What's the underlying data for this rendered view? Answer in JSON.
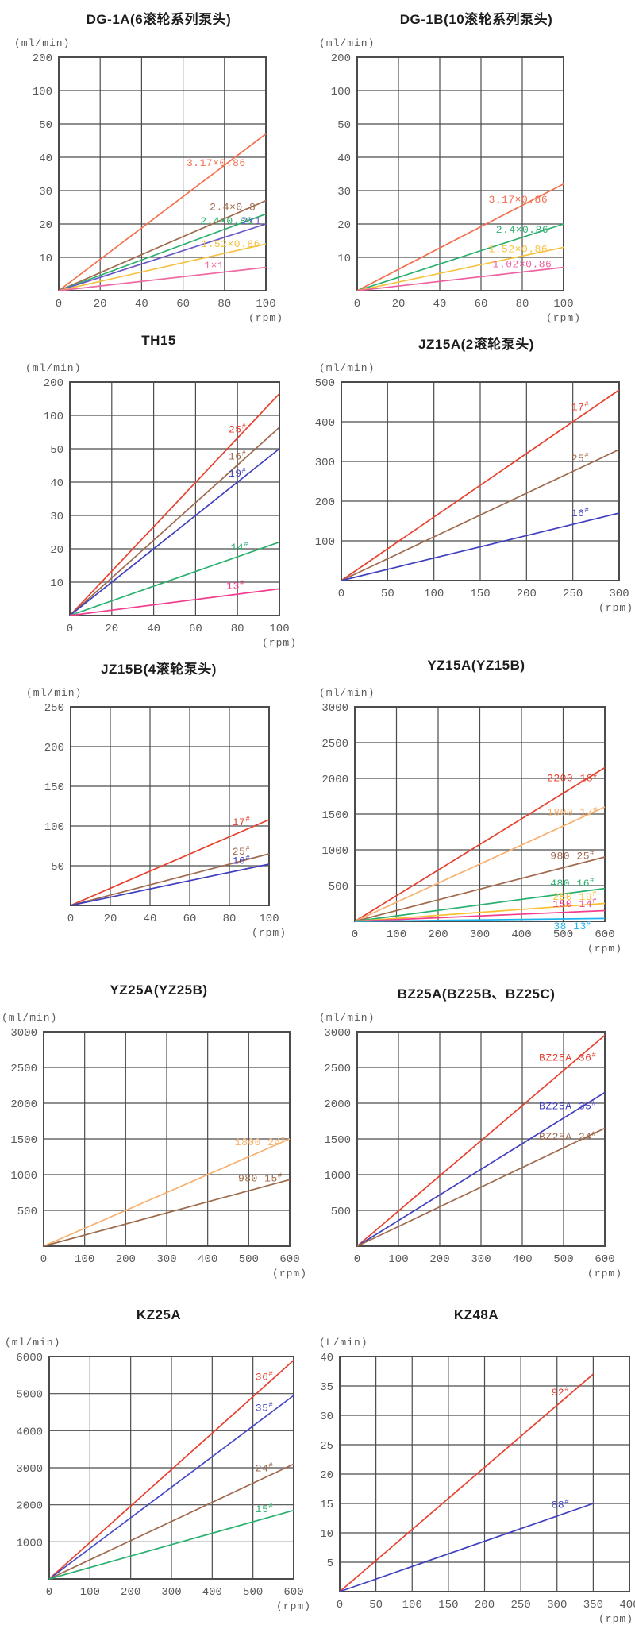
{
  "chart_data": [
    {
      "type": "line",
      "title": "DG-1A(6滚轮系列泵头)",
      "y_unit": "(ml/min)",
      "x_unit": "(rpm)",
      "y_ticks": [
        10,
        20,
        30,
        40,
        50,
        100,
        200
      ],
      "x_ticks": [
        0,
        20,
        40,
        60,
        80,
        100
      ],
      "ylim": [
        0,
        200
      ],
      "xlim": [
        0,
        100
      ],
      "grid": true,
      "series": [
        {
          "label": "3.17×0.86",
          "color": "#f4704e",
          "x": [
            0,
            100
          ],
          "y": [
            0,
            47
          ]
        },
        {
          "label": "2.4×0.8",
          "color": "#a06a4e",
          "x": [
            0,
            100
          ],
          "y": [
            0,
            27
          ]
        },
        {
          "label": "2.4×0.86",
          "color": "#2ab06e",
          "x": [
            0,
            100
          ],
          "y": [
            0,
            23
          ]
        },
        {
          "label": "2×1",
          "color": "#6a58c8",
          "x": [
            0,
            100
          ],
          "y": [
            0,
            20
          ]
        },
        {
          "label": "1.52×0.86",
          "color": "#f5c242",
          "x": [
            0,
            100
          ],
          "y": [
            0,
            14
          ]
        },
        {
          "label": "1×1",
          "color": "#ee6aa4",
          "x": [
            0,
            100
          ],
          "y": [
            0,
            7
          ]
        }
      ]
    },
    {
      "type": "line",
      "title": "DG-1B(10滚轮系列泵头)",
      "y_unit": "(ml/min)",
      "x_unit": "(rpm)",
      "y_ticks": [
        10,
        20,
        30,
        40,
        50,
        100,
        200
      ],
      "x_ticks": [
        0,
        20,
        40,
        60,
        80,
        100
      ],
      "ylim": [
        0,
        200
      ],
      "xlim": [
        0,
        100
      ],
      "grid": true,
      "series": [
        {
          "label": "3.17×0.86",
          "color": "#f4704e",
          "x": [
            0,
            100
          ],
          "y": [
            0,
            32
          ]
        },
        {
          "label": "2.4×0.86",
          "color": "#2ab06e",
          "x": [
            0,
            100
          ],
          "y": [
            0,
            20
          ]
        },
        {
          "label": "1.52×0.86",
          "color": "#f5c242",
          "x": [
            0,
            100
          ],
          "y": [
            0,
            13
          ]
        },
        {
          "label": "1.02×0.86",
          "color": "#ee5fa0",
          "x": [
            0,
            100
          ],
          "y": [
            0,
            7
          ]
        }
      ]
    },
    {
      "type": "line",
      "title": "TH15",
      "y_unit": "(ml/min)",
      "x_unit": "(rpm)",
      "y_ticks": [
        10,
        20,
        30,
        40,
        50,
        100,
        200
      ],
      "x_ticks": [
        0,
        20,
        40,
        60,
        80,
        100
      ],
      "ylim": [
        0,
        200
      ],
      "xlim": [
        0,
        100
      ],
      "grid": true,
      "series": [
        {
          "label": "25#",
          "color": "#e8402e",
          "x": [
            0,
            100
          ],
          "y": [
            0,
            165
          ]
        },
        {
          "label": "16#",
          "color": "#a06a4e",
          "x": [
            0,
            100
          ],
          "y": [
            0,
            82
          ]
        },
        {
          "label": "19#",
          "color": "#3f3fc0",
          "x": [
            0,
            100
          ],
          "y": [
            0,
            50
          ]
        },
        {
          "label": "14#",
          "color": "#2ab06e",
          "x": [
            0,
            100
          ],
          "y": [
            0,
            22
          ]
        },
        {
          "label": "13#",
          "color": "#f23e8e",
          "x": [
            0,
            100
          ],
          "y": [
            0,
            8
          ]
        }
      ]
    },
    {
      "type": "line",
      "title": "JZ15A(2滚轮泵头)",
      "y_unit": "(ml/min)",
      "x_unit": "(rpm)",
      "y_ticks": [
        100,
        200,
        300,
        400,
        500
      ],
      "x_ticks": [
        0,
        50,
        100,
        150,
        200,
        250,
        300
      ],
      "ylim": [
        0,
        500
      ],
      "xlim": [
        0,
        300
      ],
      "grid": true,
      "series": [
        {
          "label": "17#",
          "color": "#e8402e",
          "x": [
            0,
            300
          ],
          "y": [
            0,
            480
          ]
        },
        {
          "label": "25#",
          "color": "#a06a4e",
          "x": [
            0,
            300
          ],
          "y": [
            0,
            330
          ]
        },
        {
          "label": "16#",
          "color": "#3f3fc0",
          "x": [
            0,
            300
          ],
          "y": [
            0,
            170
          ]
        }
      ]
    },
    {
      "type": "line",
      "title": "JZ15B(4滚轮泵头)",
      "y_unit": "(ml/min)",
      "x_unit": "(rpm)",
      "y_ticks": [
        50,
        100,
        150,
        200,
        250
      ],
      "x_ticks": [
        0,
        20,
        40,
        60,
        80,
        100
      ],
      "ylim": [
        0,
        250
      ],
      "xlim": [
        0,
        100
      ],
      "grid": true,
      "series": [
        {
          "label": "17#",
          "color": "#e8402e",
          "x": [
            0,
            100
          ],
          "y": [
            0,
            108
          ]
        },
        {
          "label": "25#",
          "color": "#a06a4e",
          "x": [
            0,
            100
          ],
          "y": [
            0,
            65
          ]
        },
        {
          "label": "16#",
          "color": "#3f3fc0",
          "x": [
            0,
            100
          ],
          "y": [
            0,
            52
          ]
        }
      ]
    },
    {
      "type": "line",
      "title": "YZ15A(YZ15B)",
      "y_unit": "(ml/min)",
      "x_unit": "(rpm)",
      "y_ticks": [
        500,
        1000,
        1500,
        2000,
        2500,
        3000
      ],
      "x_ticks": [
        0,
        100,
        200,
        300,
        400,
        500,
        600
      ],
      "ylim": [
        0,
        3000
      ],
      "xlim": [
        0,
        600
      ],
      "grid": true,
      "series": [
        {
          "label": "2200 18#",
          "color": "#e8402e",
          "x": [
            0,
            600
          ],
          "y": [
            0,
            2150
          ]
        },
        {
          "label": "1800 17#",
          "color": "#f8b06e",
          "x": [
            0,
            600
          ],
          "y": [
            0,
            1600
          ]
        },
        {
          "label": "980 25#",
          "color": "#a06a4e",
          "x": [
            0,
            600
          ],
          "y": [
            0,
            900
          ]
        },
        {
          "label": "480 16#",
          "color": "#2ab06e",
          "x": [
            0,
            600
          ],
          "y": [
            0,
            460
          ]
        },
        {
          "label": "250 19#",
          "color": "#f8c030",
          "x": [
            0,
            600
          ],
          "y": [
            0,
            250
          ]
        },
        {
          "label": "150 14#",
          "color": "#f23e8e",
          "x": [
            0,
            600
          ],
          "y": [
            0,
            150
          ]
        },
        {
          "label": "38 13#",
          "color": "#20b4ee",
          "x": [
            0,
            600
          ],
          "y": [
            0,
            40
          ]
        }
      ]
    },
    {
      "type": "line",
      "title": "YZ25A(YZ25B)",
      "y_unit": "(ml/min)",
      "x_unit": "(rpm)",
      "y_ticks": [
        500,
        1000,
        1500,
        2000,
        2500,
        3000
      ],
      "x_ticks": [
        0,
        100,
        200,
        300,
        400,
        500,
        600
      ],
      "ylim": [
        0,
        3000
      ],
      "xlim": [
        0,
        600
      ],
      "grid": true,
      "series": [
        {
          "label": "1800 24#",
          "color": "#f8b06e",
          "x": [
            0,
            600
          ],
          "y": [
            0,
            1500
          ]
        },
        {
          "label": "980 15#",
          "color": "#9c6a4a",
          "x": [
            0,
            600
          ],
          "y": [
            0,
            930
          ]
        }
      ]
    },
    {
      "type": "line",
      "title": "BZ25A(BZ25B、BZ25C)",
      "y_unit": "(ml/min)",
      "x_unit": "(rpm)",
      "y_ticks": [
        500,
        1000,
        1500,
        2000,
        2500,
        3000
      ],
      "x_ticks": [
        0,
        100,
        200,
        300,
        400,
        500,
        600
      ],
      "ylim": [
        0,
        3000
      ],
      "xlim": [
        0,
        600
      ],
      "grid": true,
      "series": [
        {
          "label": "BZ25A 36#",
          "color": "#e8402e",
          "x": [
            0,
            600
          ],
          "y": [
            0,
            2950
          ]
        },
        {
          "label": "BZ25A 35#",
          "color": "#4040c0",
          "x": [
            0,
            600
          ],
          "y": [
            0,
            2150
          ]
        },
        {
          "label": "BZ25A 24#",
          "color": "#a06a4e",
          "x": [
            0,
            600
          ],
          "y": [
            0,
            1650
          ]
        }
      ]
    },
    {
      "type": "line",
      "title": "KZ25A",
      "y_unit": "(ml/min)",
      "x_unit": "(rpm)",
      "y_ticks": [
        1000,
        2000,
        3000,
        4000,
        5000,
        6000
      ],
      "x_ticks": [
        0,
        100,
        200,
        300,
        400,
        500,
        600
      ],
      "ylim": [
        0,
        6000
      ],
      "xlim": [
        0,
        600
      ],
      "grid": true,
      "series": [
        {
          "label": "36#",
          "color": "#e8402e",
          "x": [
            0,
            600
          ],
          "y": [
            0,
            5900
          ]
        },
        {
          "label": "35#",
          "color": "#4848c8",
          "x": [
            0,
            600
          ],
          "y": [
            0,
            4950
          ]
        },
        {
          "label": "24#",
          "color": "#a06a4e",
          "x": [
            0,
            600
          ],
          "y": [
            0,
            3100
          ]
        },
        {
          "label": "15#",
          "color": "#2ab06e",
          "x": [
            0,
            600
          ],
          "y": [
            0,
            1850
          ]
        }
      ]
    },
    {
      "type": "line",
      "title": "KZ48A",
      "y_unit": "(L/min)",
      "x_unit": "(rpm)",
      "y_ticks": [
        5,
        10,
        15,
        20,
        25,
        30,
        35,
        40
      ],
      "x_ticks": [
        0,
        50,
        100,
        150,
        200,
        250,
        300,
        350,
        400
      ],
      "ylim": [
        0,
        40
      ],
      "xlim": [
        0,
        400
      ],
      "grid": true,
      "series": [
        {
          "label": "92#",
          "color": "#e8402e",
          "x": [
            0,
            350
          ],
          "y": [
            0,
            37
          ]
        },
        {
          "label": "88#",
          "color": "#4040c0",
          "x": [
            0,
            350
          ],
          "y": [
            0,
            15
          ]
        }
      ]
    }
  ]
}
